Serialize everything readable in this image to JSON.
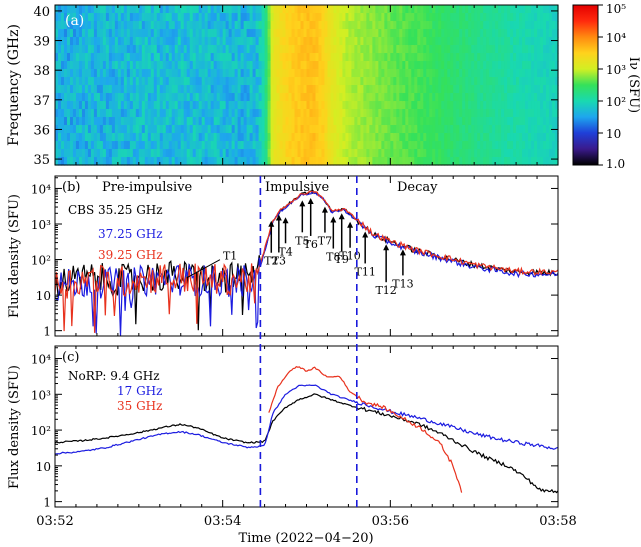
{
  "chart_data": [
    {
      "type": "heatmap",
      "panel_label": "(a)",
      "ylabel": "Frequency (GHz)",
      "y_ticks": [
        "35",
        "36",
        "37",
        "38",
        "39",
        "40"
      ],
      "ylim": [
        34.8,
        40.2
      ],
      "xlim_minutes": [
        0,
        6
      ],
      "colorbar": {
        "label": "Iν (SFU)",
        "scale": "log",
        "ticks": [
          "1.0",
          "10",
          "10²",
          "10³",
          "10⁴",
          "10⁵"
        ],
        "tick_values": [
          1,
          10,
          100,
          1000,
          10000,
          100000
        ],
        "colors": [
          "#000000",
          "#3a1a8c",
          "#1f3fd8",
          "#1ea6ee",
          "#19d9b0",
          "#35e15a",
          "#d2ef23",
          "#ffd21c",
          "#ff8a10",
          "#ff2a0d",
          "#e40000"
        ]
      },
      "time_profile_sfu": [
        [
          0.0,
          40
        ],
        [
          0.5,
          45
        ],
        [
          1.0,
          50
        ],
        [
          1.5,
          55
        ],
        [
          2.0,
          50
        ],
        [
          2.4,
          45
        ],
        [
          2.5,
          120
        ],
        [
          2.6,
          1500
        ],
        [
          2.75,
          2800
        ],
        [
          2.95,
          4000
        ],
        [
          3.1,
          4200
        ],
        [
          3.2,
          3000
        ],
        [
          3.3,
          1500
        ],
        [
          3.5,
          800
        ],
        [
          4.0,
          450
        ],
        [
          4.5,
          300
        ],
        [
          5.0,
          180
        ],
        [
          5.5,
          110
        ],
        [
          6.0,
          80
        ]
      ]
    },
    {
      "type": "line",
      "panel_label": "(b)",
      "ylabel": "Flux density (SFU)",
      "y_scale": "log",
      "ylim": [
        1,
        15000
      ],
      "y_ticks": [
        "1",
        "10",
        "10²",
        "10³",
        "10⁴"
      ],
      "instrument": "CBS 35.25 GHz",
      "phase_labels": [
        "Pre-impulsive",
        "Impulsive",
        "Decay"
      ],
      "series": [
        {
          "name": "35.25 GHz",
          "color": "#000000",
          "points": [
            [
              0,
              22
            ],
            [
              0.4,
              30
            ],
            [
              0.8,
              26
            ],
            [
              1.2,
              35
            ],
            [
              1.6,
              32
            ],
            [
              2.0,
              28
            ],
            [
              2.4,
              30
            ],
            [
              2.5,
              180
            ],
            [
              2.6,
              1200
            ],
            [
              2.7,
              2500
            ],
            [
              2.8,
              3800
            ],
            [
              2.95,
              7000
            ],
            [
              3.1,
              8000
            ],
            [
              3.2,
              5000
            ],
            [
              3.3,
              2300
            ],
            [
              3.45,
              2600
            ],
            [
              3.6,
              1300
            ],
            [
              3.8,
              500
            ],
            [
              4.0,
              320
            ],
            [
              4.3,
              180
            ],
            [
              4.6,
              120
            ],
            [
              5.0,
              70
            ],
            [
              5.5,
              45
            ],
            [
              6.0,
              42
            ]
          ]
        },
        {
          "name": "37.25 GHz",
          "color": "#1c1ce0",
          "points": [
            [
              0,
              18
            ],
            [
              0.4,
              24
            ],
            [
              0.8,
              20
            ],
            [
              1.2,
              28
            ],
            [
              1.6,
              27
            ],
            [
              2.0,
              24
            ],
            [
              2.4,
              25
            ],
            [
              2.5,
              170
            ],
            [
              2.6,
              1150
            ],
            [
              2.7,
              2400
            ],
            [
              2.8,
              3700
            ],
            [
              2.95,
              6800
            ],
            [
              3.1,
              7800
            ],
            [
              3.2,
              4900
            ],
            [
              3.3,
              2200
            ],
            [
              3.45,
              2500
            ],
            [
              3.6,
              1250
            ],
            [
              3.8,
              480
            ],
            [
              4.0,
              300
            ],
            [
              4.3,
              170
            ],
            [
              4.6,
              110
            ],
            [
              5.0,
              62
            ],
            [
              5.5,
              40
            ],
            [
              6.0,
              38
            ]
          ]
        },
        {
          "name": "39.25 GHz",
          "color": "#e8321e",
          "points": [
            [
              0,
              20
            ],
            [
              0.4,
              28
            ],
            [
              0.8,
              24
            ],
            [
              1.2,
              32
            ],
            [
              1.6,
              30
            ],
            [
              2.0,
              27
            ],
            [
              2.4,
              28
            ],
            [
              2.5,
              190
            ],
            [
              2.6,
              1250
            ],
            [
              2.7,
              2600
            ],
            [
              2.8,
              3900
            ],
            [
              2.95,
              7200
            ],
            [
              3.1,
              8200
            ],
            [
              3.2,
              5100
            ],
            [
              3.3,
              2350
            ],
            [
              3.45,
              2650
            ],
            [
              3.6,
              1350
            ],
            [
              3.8,
              520
            ],
            [
              4.0,
              330
            ],
            [
              4.3,
              185
            ],
            [
              4.6,
              125
            ],
            [
              5.0,
              72
            ],
            [
              5.5,
              47
            ],
            [
              6.0,
              44
            ]
          ]
        }
      ],
      "annotations": [
        {
          "label": "T1",
          "x": 1.55,
          "y": 40
        },
        {
          "label": "T2",
          "x": 2.58,
          "y": 1600
        },
        {
          "label": "T3",
          "x": 2.67,
          "y": 2400
        },
        {
          "label": "T4",
          "x": 2.75,
          "y": 2000
        },
        {
          "label": "T5",
          "x": 2.95,
          "y": 6000
        },
        {
          "label": "T6",
          "x": 3.05,
          "y": 7000
        },
        {
          "label": "T7",
          "x": 3.22,
          "y": 4000
        },
        {
          "label": "T8",
          "x": 3.32,
          "y": 2100
        },
        {
          "label": "T9",
          "x": 3.42,
          "y": 2600
        },
        {
          "label": "T10",
          "x": 3.52,
          "y": 1500
        },
        {
          "label": "T11",
          "x": 3.7,
          "y": 800
        },
        {
          "label": "T12",
          "x": 3.95,
          "y": 350
        },
        {
          "label": "T13",
          "x": 4.15,
          "y": 250
        }
      ]
    },
    {
      "type": "line",
      "panel_label": "(c)",
      "ylabel": "Flux density (SFU)",
      "y_scale": "log",
      "ylim": [
        1,
        15000
      ],
      "y_ticks": [
        "1",
        "10",
        "10²",
        "10³",
        "10⁴"
      ],
      "instrument": "NoRP: 9.4 GHz",
      "series": [
        {
          "name": "9.4 GHz",
          "color": "#000000",
          "points": [
            [
              0,
              45
            ],
            [
              0.3,
              50
            ],
            [
              0.6,
              60
            ],
            [
              1.0,
              85
            ],
            [
              1.3,
              120
            ],
            [
              1.5,
              145
            ],
            [
              1.7,
              115
            ],
            [
              2.0,
              60
            ],
            [
              2.3,
              44
            ],
            [
              2.5,
              48
            ],
            [
              2.6,
              180
            ],
            [
              2.75,
              430
            ],
            [
              2.9,
              700
            ],
            [
              3.1,
              1000
            ],
            [
              3.3,
              700
            ],
            [
              3.5,
              500
            ],
            [
              3.8,
              330
            ],
            [
              4.0,
              250
            ],
            [
              4.3,
              160
            ],
            [
              4.6,
              80
            ],
            [
              4.8,
              45
            ],
            [
              5.0,
              25
            ],
            [
              5.2,
              15
            ],
            [
              5.4,
              10
            ],
            [
              5.6,
              5
            ],
            [
              5.8,
              2
            ],
            [
              6.0,
              2
            ]
          ]
        },
        {
          "name": "17 GHz",
          "color": "#1c1ce0",
          "points": [
            [
              0,
              22
            ],
            [
              0.3,
              25
            ],
            [
              0.6,
              32
            ],
            [
              1.0,
              55
            ],
            [
              1.3,
              80
            ],
            [
              1.5,
              90
            ],
            [
              1.7,
              75
            ],
            [
              2.0,
              45
            ],
            [
              2.3,
              33
            ],
            [
              2.5,
              36
            ],
            [
              2.6,
              300
            ],
            [
              2.75,
              1000
            ],
            [
              2.9,
              1700
            ],
            [
              3.1,
              1800
            ],
            [
              3.3,
              1000
            ],
            [
              3.5,
              700
            ],
            [
              3.8,
              450
            ],
            [
              4.0,
              330
            ],
            [
              4.3,
              230
            ],
            [
              4.6,
              150
            ],
            [
              4.8,
              110
            ],
            [
              5.0,
              80
            ],
            [
              5.3,
              55
            ],
            [
              5.6,
              42
            ],
            [
              6.0,
              30
            ]
          ]
        },
        {
          "name": "35 GHz",
          "color": "#e8321e",
          "points": [
            [
              2.55,
              300
            ],
            [
              2.65,
              1500
            ],
            [
              2.8,
              4500
            ],
            [
              2.9,
              6000
            ],
            [
              3.0,
              4500
            ],
            [
              3.1,
              5500
            ],
            [
              3.25,
              3000
            ],
            [
              3.4,
              3200
            ],
            [
              3.5,
              1300
            ],
            [
              3.7,
              600
            ],
            [
              3.9,
              450
            ],
            [
              4.1,
              250
            ],
            [
              4.4,
              100
            ],
            [
              4.6,
              40
            ],
            [
              4.75,
              10
            ],
            [
              4.85,
              2
            ]
          ]
        }
      ]
    }
  ],
  "x_axis": {
    "label": "Time (2022−04−20)",
    "tick_labels": [
      "03:52",
      "03:54",
      "03:56",
      "03:58"
    ],
    "tick_minutes": [
      0,
      2,
      4,
      6
    ],
    "xlim_minutes": [
      0,
      6
    ]
  },
  "phase_boundaries_minutes": [
    2.45,
    3.6
  ],
  "boundary_color": "#1a1adb"
}
